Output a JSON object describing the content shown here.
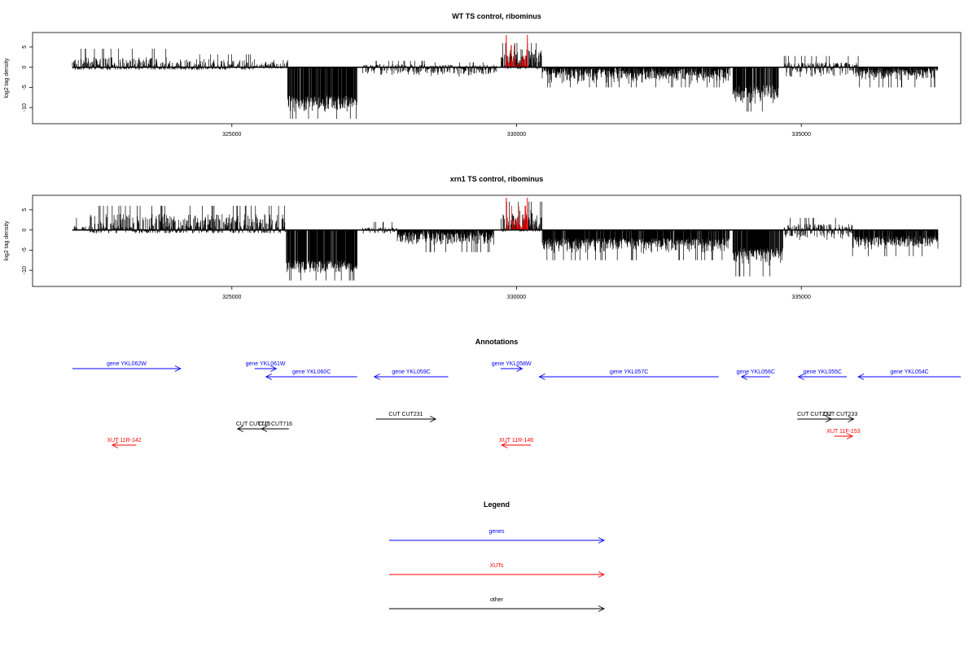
{
  "chart_data": [
    {
      "type": "bar",
      "title": "WT TS control, ribominus",
      "ylabel": "log2 tag density",
      "xlim": [
        321500,
        337800
      ],
      "ylim": [
        -14,
        8.6
      ],
      "x_ticks": [
        325000,
        330000,
        335000
      ],
      "x_tick_labels": [
        "325000",
        "330000",
        "335000"
      ],
      "y_ticks": [
        -10,
        -5,
        0,
        5
      ],
      "y_tick_labels": [
        "-10",
        "-5",
        "0",
        "5"
      ],
      "baseline": {
        "x": [
          322200,
          337400
        ],
        "y": 0
      },
      "highlight_lines": {
        "color": "#ff0000",
        "x": [
          329820,
          330190
        ],
        "y": 8
      },
      "segments": [
        {
          "start": 322200,
          "end": 323900,
          "min": -0.6,
          "max": 2.5,
          "peak": 4.6,
          "color": "#000000"
        },
        {
          "start": 323900,
          "end": 325400,
          "min": -0.6,
          "max": 2.0,
          "peak": 3.2,
          "color": "#000000"
        },
        {
          "start": 325400,
          "end": 325980,
          "min": -0.3,
          "max": 1.4,
          "peak": 1.8,
          "color": "#000000"
        },
        {
          "start": 325980,
          "end": 327200,
          "min": -11.5,
          "max": -7.0,
          "peak": -12.8,
          "color": "#000000"
        },
        {
          "start": 327300,
          "end": 328400,
          "min": -2.5,
          "max": 0.8,
          "peak": 1.6,
          "color": "#000000"
        },
        {
          "start": 328400,
          "end": 329650,
          "min": -2.6,
          "max": 0.6,
          "peak": 1.2,
          "color": "#000000"
        },
        {
          "start": 329730,
          "end": 330450,
          "min": -0.5,
          "max": 4.5,
          "peak": 6.0,
          "color": "#000000"
        },
        {
          "start": 329820,
          "end": 330200,
          "min": 0.0,
          "max": 3.5,
          "peak": 5.5,
          "color": "#cc0000"
        },
        {
          "start": 330450,
          "end": 333750,
          "min": -4.2,
          "max": -0.3,
          "peak": -5.0,
          "color": "#000000"
        },
        {
          "start": 333800,
          "end": 334600,
          "min": -9.5,
          "max": -4.5,
          "peak": -11.0,
          "color": "#000000"
        },
        {
          "start": 334700,
          "end": 336000,
          "min": -2.5,
          "max": 1.2,
          "peak": 2.8,
          "color": "#000000"
        },
        {
          "start": 336000,
          "end": 337400,
          "min": -3.6,
          "max": -0.3,
          "peak": -5.0,
          "color": "#000000"
        }
      ]
    },
    {
      "type": "bar",
      "title": "xrn1 TS control, ribominus",
      "ylabel": "log2 tag density",
      "xlim": [
        321500,
        337800
      ],
      "ylim": [
        -14,
        8.6
      ],
      "x_ticks": [
        325000,
        330000,
        335000
      ],
      "x_tick_labels": [
        "325000",
        "330000",
        "335000"
      ],
      "y_ticks": [
        -10,
        -5,
        0,
        5
      ],
      "y_tick_labels": [
        "-10",
        "-5",
        "0",
        "5"
      ],
      "baseline": {
        "x": [
          322200,
          337400
        ],
        "y": 0
      },
      "highlight_lines": {
        "color": "#ff0000",
        "x": [
          329820,
          330190
        ],
        "y": 8
      },
      "segments": [
        {
          "start": 322200,
          "end": 322500,
          "min": -0.2,
          "max": 1.0,
          "peak": 3.0,
          "color": "#000000"
        },
        {
          "start": 322500,
          "end": 325950,
          "min": -0.8,
          "max": 4.0,
          "peak": 6.0,
          "color": "#000000"
        },
        {
          "start": 325950,
          "end": 327200,
          "min": -11.0,
          "max": -7.5,
          "peak": -12.5,
          "color": "#000000"
        },
        {
          "start": 327300,
          "end": 327900,
          "min": -1.2,
          "max": 0.6,
          "peak": 2.0,
          "color": "#000000"
        },
        {
          "start": 327900,
          "end": 329600,
          "min": -4.0,
          "max": -0.5,
          "peak": -5.5,
          "color": "#000000"
        },
        {
          "start": 329730,
          "end": 330450,
          "min": -0.4,
          "max": 5.0,
          "peak": 7.0,
          "color": "#000000"
        },
        {
          "start": 329820,
          "end": 330200,
          "min": 0.0,
          "max": 4.0,
          "peak": 6.0,
          "color": "#cc0000"
        },
        {
          "start": 330450,
          "end": 333750,
          "min": -6.0,
          "max": -2.0,
          "peak": -7.5,
          "color": "#000000"
        },
        {
          "start": 333800,
          "end": 334700,
          "min": -9.0,
          "max": -4.5,
          "peak": -11.5,
          "color": "#000000"
        },
        {
          "start": 334700,
          "end": 335900,
          "min": -3.0,
          "max": 1.5,
          "peak": 3.0,
          "color": "#000000"
        },
        {
          "start": 335900,
          "end": 337400,
          "min": -5.0,
          "max": -1.5,
          "peak": -6.5,
          "color": "#000000"
        }
      ]
    },
    {
      "type": "other",
      "title": "Annotations",
      "xlim": [
        321500,
        337800
      ],
      "features": [
        {
          "label": "gene YKL062W",
          "kind": "gene",
          "strand": "+",
          "start": 322200,
          "end": 324100,
          "row": 0
        },
        {
          "label": "gene YKL061W",
          "kind": "gene",
          "strand": "+",
          "start": 325400,
          "end": 325780,
          "row": 0
        },
        {
          "label": "gene YKL060C",
          "kind": "gene",
          "strand": "-",
          "start": 325600,
          "end": 327200,
          "row": 1
        },
        {
          "label": "gene YKL059C",
          "kind": "gene",
          "strand": "-",
          "start": 327500,
          "end": 328800,
          "row": 1
        },
        {
          "label": "gene YKL058W",
          "kind": "gene",
          "strand": "+",
          "start": 329720,
          "end": 330100,
          "row": 0
        },
        {
          "label": "gene YKL057C",
          "kind": "gene",
          "strand": "-",
          "start": 330400,
          "end": 333550,
          "row": 1
        },
        {
          "label": "gene YKL056C",
          "kind": "gene",
          "strand": "-",
          "start": 333950,
          "end": 334450,
          "row": 1
        },
        {
          "label": "gene YKL055C",
          "kind": "gene",
          "strand": "-",
          "start": 334950,
          "end": 335800,
          "row": 1
        },
        {
          "label": "gene YKL054C",
          "kind": "gene",
          "strand": "-",
          "start": 336000,
          "end": 337800,
          "row": 1
        },
        {
          "label": "CUT CUT231",
          "kind": "other",
          "strand": "+",
          "start": 327530,
          "end": 328580,
          "row": 2
        },
        {
          "label": "CUT CUT232",
          "kind": "other",
          "strand": "+",
          "start": 334930,
          "end": 335530,
          "row": 2
        },
        {
          "label": "CUT CUT233",
          "kind": "other",
          "strand": "+",
          "start": 335450,
          "end": 335920,
          "row": 2
        },
        {
          "label": "CUT CUT715",
          "kind": "other",
          "strand": "-",
          "start": 325100,
          "end": 325650,
          "row": 3
        },
        {
          "label": "CUT CUT716",
          "kind": "other",
          "strand": "-",
          "start": 325520,
          "end": 326000,
          "row": 3
        },
        {
          "label": "XUT 11R-142",
          "kind": "xut",
          "strand": "-",
          "start": 322900,
          "end": 323320,
          "row": 4
        },
        {
          "label": "XUT 11R-146",
          "kind": "xut",
          "strand": "-",
          "start": 329740,
          "end": 330250,
          "row": 4
        },
        {
          "label": "XUT 11F-153",
          "kind": "xut",
          "strand": "+",
          "start": 335580,
          "end": 335900,
          "row": 5
        }
      ]
    },
    {
      "type": "other",
      "title": "Legend",
      "entries": [
        {
          "label": "genes",
          "color": "#0000ff"
        },
        {
          "label": "XUTs",
          "color": "#ff0000"
        },
        {
          "label": "other",
          "color": "#000000"
        }
      ]
    }
  ]
}
